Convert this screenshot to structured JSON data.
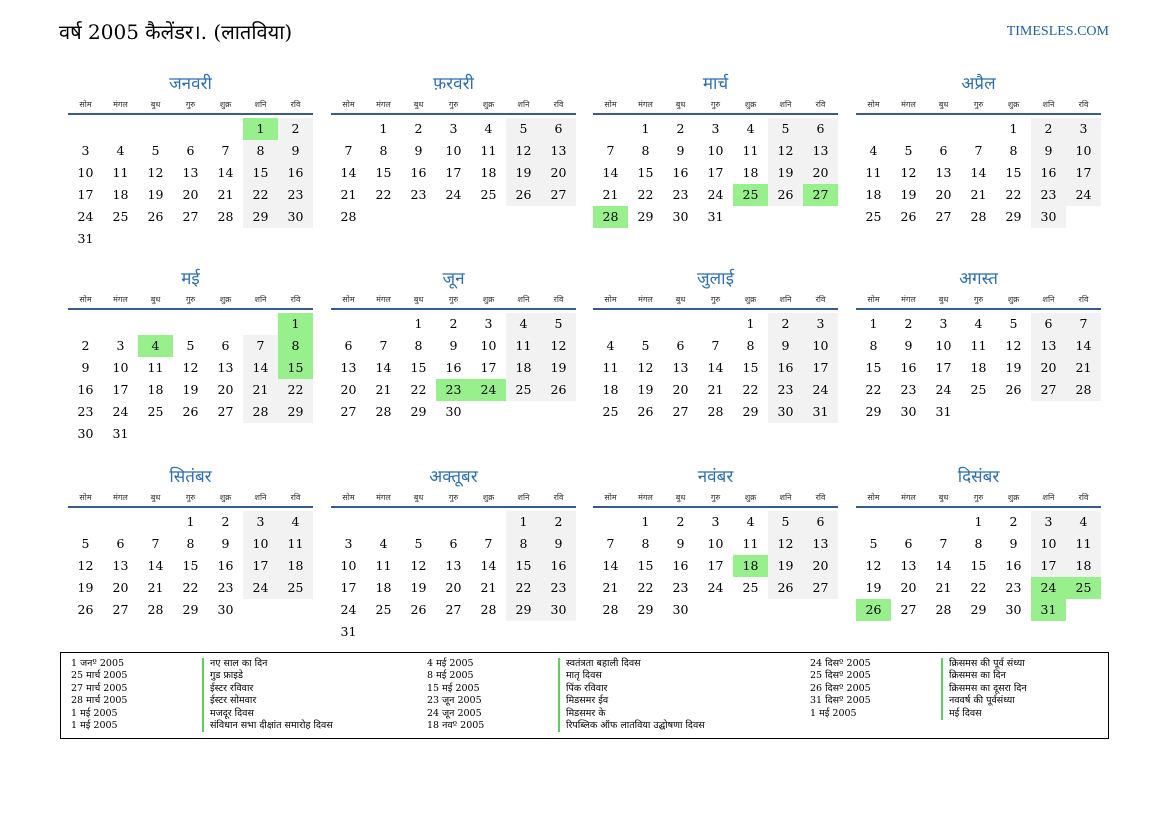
{
  "header": {
    "title": "वर्ष 2005 कैलेंडर।. (लातविया)",
    "site": "TIMESLES.COM"
  },
  "weekday_names": [
    "सोम",
    "मंगल",
    "बुध",
    "गुरु",
    "शुक्र",
    "शनि",
    "रवि"
  ],
  "colors": {
    "holiday": "#98f08c",
    "weekend": "#f2f2f2",
    "month_name": "#2d6fb3",
    "header_rule": "#355c8c"
  },
  "months": [
    {
      "name": "जनवरी",
      "offset": 5,
      "days": 31,
      "holidays": [
        1
      ]
    },
    {
      "name": "फ़रवरी",
      "offset": 1,
      "days": 28,
      "holidays": []
    },
    {
      "name": "मार्च",
      "offset": 1,
      "days": 31,
      "holidays": [
        25,
        27,
        28
      ]
    },
    {
      "name": "अप्रैल",
      "offset": 4,
      "days": 30,
      "holidays": []
    },
    {
      "name": "मई",
      "offset": 6,
      "days": 31,
      "holidays": [
        1,
        4,
        8,
        15
      ]
    },
    {
      "name": "जून",
      "offset": 2,
      "days": 30,
      "holidays": [
        23,
        24
      ]
    },
    {
      "name": "जुलाई",
      "offset": 4,
      "days": 31,
      "holidays": []
    },
    {
      "name": "अगस्त",
      "offset": 0,
      "days": 31,
      "holidays": []
    },
    {
      "name": "सितंबर",
      "offset": 3,
      "days": 30,
      "holidays": []
    },
    {
      "name": "अक्तूबर",
      "offset": 5,
      "days": 31,
      "holidays": []
    },
    {
      "name": "नवंबर",
      "offset": 1,
      "days": 30,
      "holidays": [
        18
      ]
    },
    {
      "name": "दिसंबर",
      "offset": 3,
      "days": 31,
      "holidays": [
        24,
        25,
        26,
        31
      ]
    }
  ],
  "legend": [
    [
      {
        "date": "1 जनº 2005",
        "name": "नए साल का दिन"
      },
      {
        "date": "25 मार्च 2005",
        "name": "गुड फ्राइडे"
      },
      {
        "date": "27 मार्च 2005",
        "name": "ईस्टर रविवार"
      },
      {
        "date": "28 मार्च 2005",
        "name": "ईस्टर सोमवार"
      },
      {
        "date": "1 मई 2005",
        "name": "मजदूर दिवस"
      },
      {
        "date": "1 मई 2005",
        "name": "संविधान सभा दीक्षांत समारोह दिवस"
      }
    ],
    [
      {
        "date": "4 मई 2005",
        "name": "स्वतंत्रता बहाली दिवस"
      },
      {
        "date": "8 मई 2005",
        "name": "मातृ दिवस"
      },
      {
        "date": "15 मई 2005",
        "name": "पिंक रविवार"
      },
      {
        "date": "23 जून 2005",
        "name": "मिडसमर ईव"
      },
      {
        "date": "24 जून 2005",
        "name": "मिडसमर के"
      },
      {
        "date": "18 नवº 2005",
        "name": "रिपब्लिक ऑफ लातविया उद्घोषणा दिवस"
      }
    ],
    [
      {
        "date": "24 दिसº 2005",
        "name": "क्रिसमस की पूर्व संध्या"
      },
      {
        "date": "25 दिसº 2005",
        "name": "क्रिसमस का दिन"
      },
      {
        "date": "26 दिसº 2005",
        "name": "क्रिसमस का दूसरा दिन"
      },
      {
        "date": "31 दिसº 2005",
        "name": "नववर्ष की पूर्वसंध्या"
      },
      {
        "date": "1 मई 2005",
        "name": "मई दिवस"
      }
    ]
  ]
}
